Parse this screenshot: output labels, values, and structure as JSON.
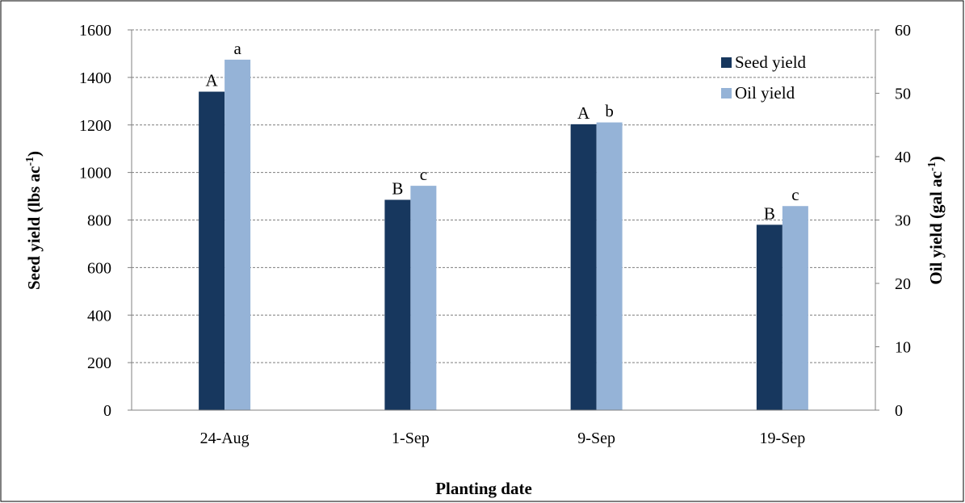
{
  "chart_data": {
    "type": "bar",
    "categories": [
      "24-Aug",
      "1-Sep",
      "9-Sep",
      "19-Sep"
    ],
    "series": [
      {
        "name": "Seed yield",
        "axis": "left",
        "color": "#17375e",
        "values": [
          1340,
          885,
          1203,
          780
        ],
        "labels": [
          "A",
          "B",
          "A",
          "B"
        ]
      },
      {
        "name": "Oil yield",
        "axis": "right",
        "color": "#95b3d7",
        "values": [
          55.3,
          35.4,
          45.4,
          32.2
        ],
        "labels": [
          "a",
          "c",
          "b",
          "c"
        ]
      }
    ],
    "xlabel": "Planting date",
    "ylabel_left": {
      "main": "Seed yield (lbs ac",
      "sup": "-1",
      "end": ")"
    },
    "ylabel_right": {
      "main": "Oil yield (gal ac",
      "sup": "-1",
      "end": ")"
    },
    "ylim_left": [
      0,
      1600
    ],
    "yticks_left": [
      0,
      200,
      400,
      600,
      800,
      1000,
      1200,
      1400,
      1600
    ],
    "ylim_right": [
      0,
      60
    ],
    "yticks_right": [
      0,
      10,
      20,
      30,
      40,
      50,
      60
    ],
    "grid": true,
    "legend_position": "top-right"
  }
}
